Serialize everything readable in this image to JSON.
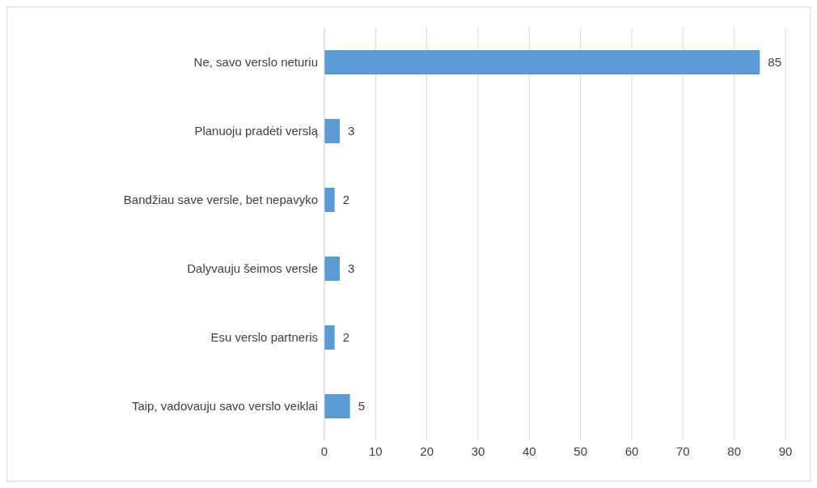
{
  "chart_data": {
    "type": "bar",
    "orientation": "horizontal",
    "categories": [
      "Ne, savo verslo neturiu",
      "Planuoju pradėti verslą",
      "Bandžiau save versle, bet nepavyko",
      "Dalyvauju šeimos versle",
      "Esu verslo partneris",
      "Taip, vadovauju savo verslo veiklai"
    ],
    "values": [
      85,
      3,
      2,
      3,
      2,
      5
    ],
    "color": "#5b9bd5",
    "xlim": [
      0,
      90
    ],
    "xticks": [
      0,
      10,
      20,
      30,
      40,
      50,
      60,
      70,
      80,
      90
    ],
    "grid": "x",
    "data_labels": true
  }
}
